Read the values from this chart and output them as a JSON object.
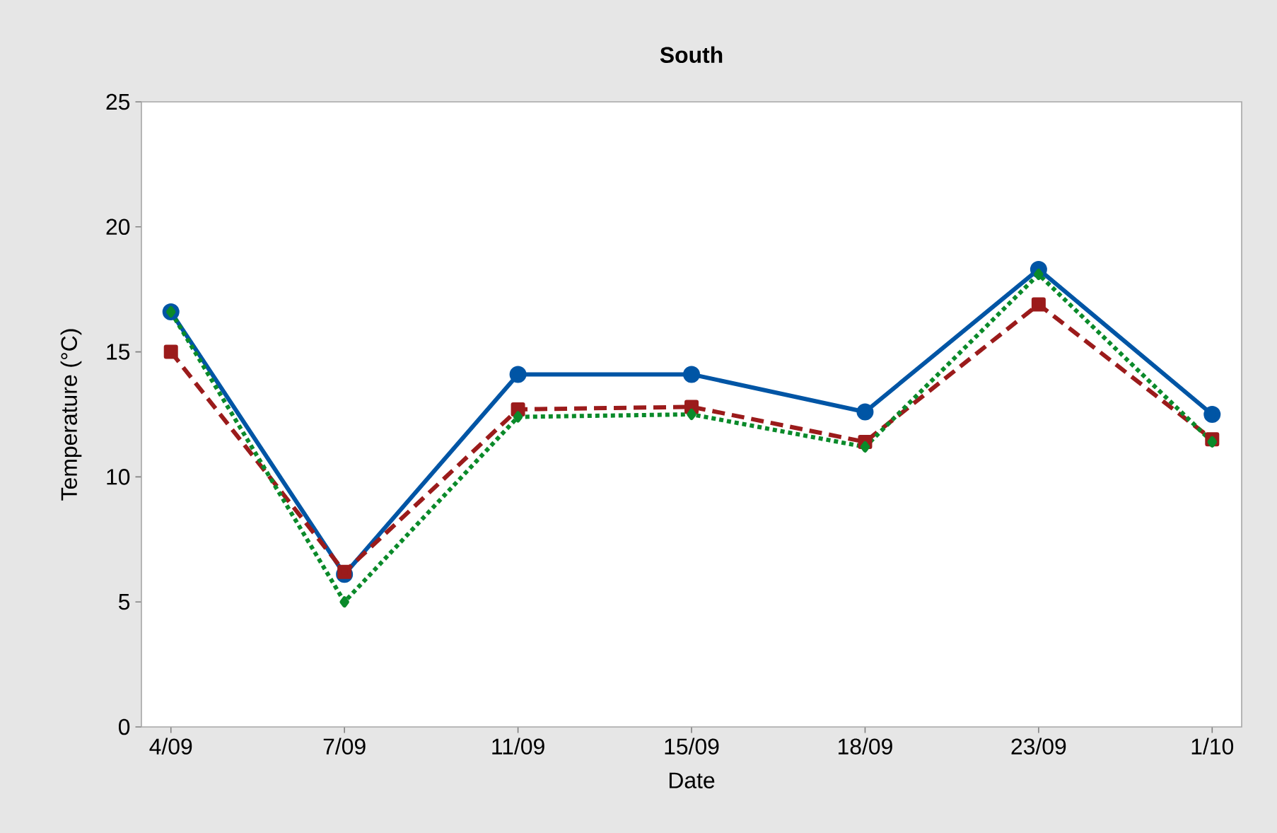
{
  "chart_data": {
    "type": "line",
    "title": "South",
    "xlabel": "Date",
    "ylabel": "Temperature (°C)",
    "categories": [
      "4/09",
      "7/09",
      "11/09",
      "15/09",
      "18/09",
      "23/09",
      "1/10"
    ],
    "series": [
      {
        "color": "#0055a5",
        "marker": "circle",
        "line_style": "solid",
        "values": [
          16.6,
          6.1,
          14.1,
          14.1,
          12.6,
          18.3,
          12.5
        ]
      },
      {
        "color": "#9b1b1b",
        "marker": "square",
        "line_style": "dashed",
        "values": [
          15.0,
          6.2,
          12.7,
          12.8,
          11.4,
          16.9,
          11.5
        ]
      },
      {
        "color": "#0a8a2a",
        "marker": "diamond",
        "line_style": "dotted",
        "values": [
          16.6,
          5.0,
          12.4,
          12.5,
          11.2,
          18.1,
          11.4
        ]
      }
    ],
    "ylim": [
      0,
      25
    ],
    "yticks": [
      0,
      5,
      10,
      15,
      20,
      25
    ]
  }
}
